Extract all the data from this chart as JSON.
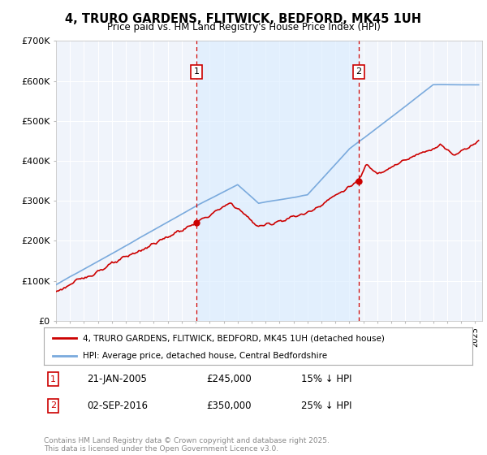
{
  "title": "4, TRURO GARDENS, FLITWICK, BEDFORD, MK45 1UH",
  "subtitle": "Price paid vs. HM Land Registry's House Price Index (HPI)",
  "ylim": [
    0,
    700000
  ],
  "yticks": [
    0,
    100000,
    200000,
    300000,
    400000,
    500000,
    600000,
    700000
  ],
  "ytick_labels": [
    "£0",
    "£100K",
    "£200K",
    "£300K",
    "£400K",
    "£500K",
    "£600K",
    "£700K"
  ],
  "xlim_start": 1995.0,
  "xlim_end": 2025.5,
  "plot_bg_color": "#f0f4fb",
  "grid_color": "#d0d8e8",
  "red_line_color": "#cc0000",
  "blue_line_color": "#7aaadd",
  "vline_color": "#cc0000",
  "box_color": "#cc0000",
  "shade_color": "#ddeeff",
  "legend_label_red": "4, TRURO GARDENS, FLITWICK, BEDFORD, MK45 1UH (detached house)",
  "legend_label_blue": "HPI: Average price, detached house, Central Bedfordshire",
  "annotation1_label": "1",
  "annotation1_date": "21-JAN-2005",
  "annotation1_price": "£245,000",
  "annotation1_hpi": "15% ↓ HPI",
  "annotation1_year": 2005.05,
  "annotation1_price_val": 245000,
  "annotation2_label": "2",
  "annotation2_date": "02-SEP-2016",
  "annotation2_price": "£350,000",
  "annotation2_hpi": "25% ↓ HPI",
  "annotation2_year": 2016.67,
  "annotation2_price_val": 350000,
  "copyright_text": "Contains HM Land Registry data © Crown copyright and database right 2025.\nThis data is licensed under the Open Government Licence v3.0."
}
